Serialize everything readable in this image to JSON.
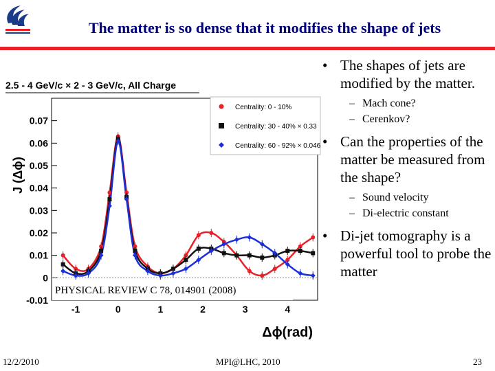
{
  "slide": {
    "title": "The matter is so dense that it modifies the shape of jets",
    "bullets": [
      {
        "text": "The shapes of jets are modified by the matter.",
        "subs": [
          "Mach cone?",
          "Cerenkov?"
        ]
      },
      {
        "text": "Can the properties of the matter be measured from the shape?",
        "subs": [
          "Sound velocity",
          "Di-electric constant"
        ]
      },
      {
        "text": "Di-jet tomography is a powerful tool to probe the matter",
        "subs": []
      }
    ],
    "footer": {
      "date": "12/2/2010",
      "center": "MPI@LHC, 2010",
      "page": "23"
    },
    "logo": "university-logo"
  },
  "chart_data": {
    "type": "scatter",
    "title": "2.5 - 4 GeV/c × 2 - 3 GeV/c,  All Charge",
    "xlabel": "Δϕ(rad)",
    "ylabel": "J (Δϕ)",
    "xlim": [
      -1.57,
      4.71
    ],
    "ylim": [
      -0.01,
      0.08
    ],
    "x_ticks": [
      "-1",
      "0",
      "1",
      "2",
      "3",
      "4"
    ],
    "y_ticks": [
      "-0.01",
      "0",
      "0.01",
      "0.02",
      "0.03",
      "0.04",
      "0.05",
      "0.06",
      "0.07"
    ],
    "annotation": "PHYSICAL REVIEW C 78, 014901 (2008)",
    "legend_position": "top-right",
    "series": [
      {
        "name": "Centrality:  0 - 10%",
        "color": "#e8202a",
        "marker": "circle",
        "x": [
          -1.3,
          -1.0,
          -0.7,
          -0.4,
          -0.2,
          0.0,
          0.2,
          0.4,
          0.7,
          1.0,
          1.3,
          1.6,
          1.9,
          2.2,
          2.5,
          2.8,
          3.1,
          3.4,
          3.7,
          4.0,
          4.3,
          4.6
        ],
        "y": [
          0.01,
          0.004,
          0.004,
          0.014,
          0.038,
          0.063,
          0.038,
          0.014,
          0.005,
          0.002,
          0.004,
          0.01,
          0.019,
          0.02,
          0.016,
          0.01,
          0.003,
          0.001,
          0.004,
          0.008,
          0.014,
          0.018
        ]
      },
      {
        "name": "Centrality: 30 - 40% × 0.33",
        "color": "#111111",
        "marker": "square",
        "x": [
          -1.3,
          -1.0,
          -0.7,
          -0.4,
          -0.2,
          0.0,
          0.2,
          0.4,
          0.7,
          1.0,
          1.3,
          1.6,
          1.9,
          2.2,
          2.5,
          2.8,
          3.1,
          3.4,
          3.7,
          4.0,
          4.3,
          4.6
        ],
        "y": [
          0.006,
          0.002,
          0.003,
          0.012,
          0.035,
          0.062,
          0.036,
          0.012,
          0.004,
          0.002,
          0.004,
          0.008,
          0.013,
          0.013,
          0.011,
          0.01,
          0.01,
          0.009,
          0.01,
          0.012,
          0.012,
          0.011
        ]
      },
      {
        "name": "Centrality: 60 - 92% × 0.046",
        "color": "#1c2fd8",
        "marker": "diamond",
        "x": [
          -1.3,
          -1.0,
          -0.7,
          -0.4,
          -0.2,
          0.0,
          0.2,
          0.4,
          0.7,
          1.0,
          1.3,
          1.6,
          1.9,
          2.2,
          2.5,
          2.8,
          3.1,
          3.4,
          3.7,
          4.0,
          4.3,
          4.6
        ],
        "y": [
          0.003,
          0.001,
          0.002,
          0.01,
          0.032,
          0.061,
          0.035,
          0.01,
          0.003,
          0.001,
          0.002,
          0.004,
          0.008,
          0.012,
          0.015,
          0.017,
          0.018,
          0.015,
          0.011,
          0.006,
          0.002,
          0.001
        ]
      }
    ]
  }
}
